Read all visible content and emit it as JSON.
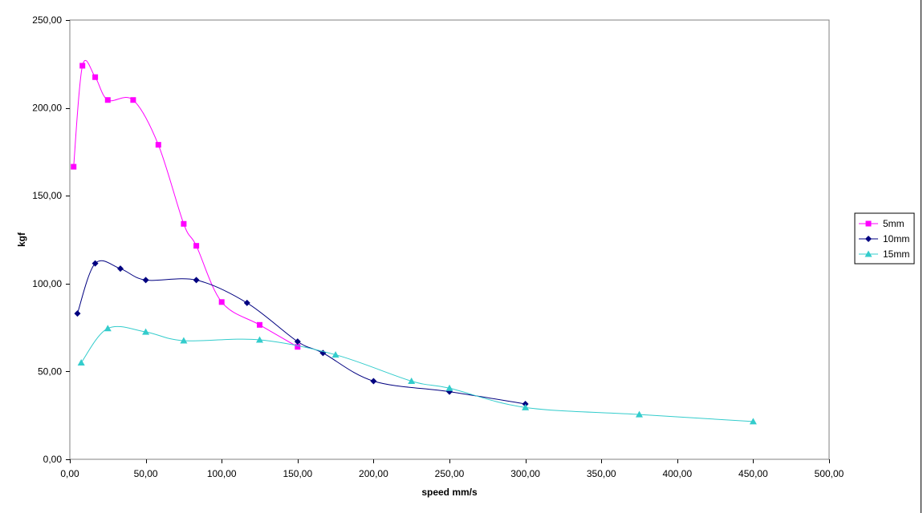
{
  "chart_data": {
    "type": "scatter",
    "title": "",
    "xlabel": "speed mm/s",
    "ylabel": "kgf",
    "xlim": [
      0,
      500
    ],
    "ylim": [
      0,
      250
    ],
    "x_ticks": [
      0,
      50,
      100,
      150,
      200,
      250,
      300,
      350,
      400,
      450,
      500
    ],
    "y_ticks": [
      0,
      50,
      100,
      150,
      200,
      250
    ],
    "x_tick_labels": [
      "0,00",
      "50,00",
      "100,00",
      "150,00",
      "200,00",
      "250,00",
      "300,00",
      "350,00",
      "400,00",
      "450,00",
      "500,00"
    ],
    "y_tick_labels": [
      "0,00",
      "50,00",
      "100,00",
      "150,00",
      "200,00",
      "250,00"
    ],
    "grid": false,
    "legend_position": "right",
    "smoothed_lines": true,
    "series": [
      {
        "name": "5mm",
        "color": "#ff00ff",
        "marker": "square",
        "points": [
          [
            2.5,
            166.5
          ],
          [
            8.3,
            224
          ],
          [
            16.7,
            217.5
          ],
          [
            25,
            204.5
          ],
          [
            41.7,
            204.5
          ],
          [
            58.3,
            179
          ],
          [
            75,
            134
          ],
          [
            83.3,
            121.5
          ],
          [
            100,
            89.5
          ],
          [
            125,
            76.5
          ],
          [
            150,
            64
          ]
        ]
      },
      {
        "name": "10mm",
        "color": "#000080",
        "marker": "diamond",
        "points": [
          [
            5,
            83
          ],
          [
            16.7,
            111.5
          ],
          [
            33.3,
            108.5
          ],
          [
            50,
            102
          ],
          [
            83.3,
            102
          ],
          [
            116.7,
            89
          ],
          [
            150,
            67
          ],
          [
            166.7,
            60.5
          ],
          [
            200,
            44.5
          ],
          [
            250,
            38.5
          ],
          [
            300,
            31.5
          ]
        ]
      },
      {
        "name": "15mm",
        "color": "#33cccc",
        "marker": "triangle",
        "points": [
          [
            7.5,
            55
          ],
          [
            25,
            74.5
          ],
          [
            50,
            72.5
          ],
          [
            75,
            67.5
          ],
          [
            125,
            68
          ],
          [
            175,
            59.5
          ],
          [
            225,
            44.5
          ],
          [
            250,
            40.5
          ],
          [
            300,
            29.5
          ],
          [
            375,
            25.5
          ],
          [
            450,
            21.5
          ]
        ]
      }
    ]
  }
}
